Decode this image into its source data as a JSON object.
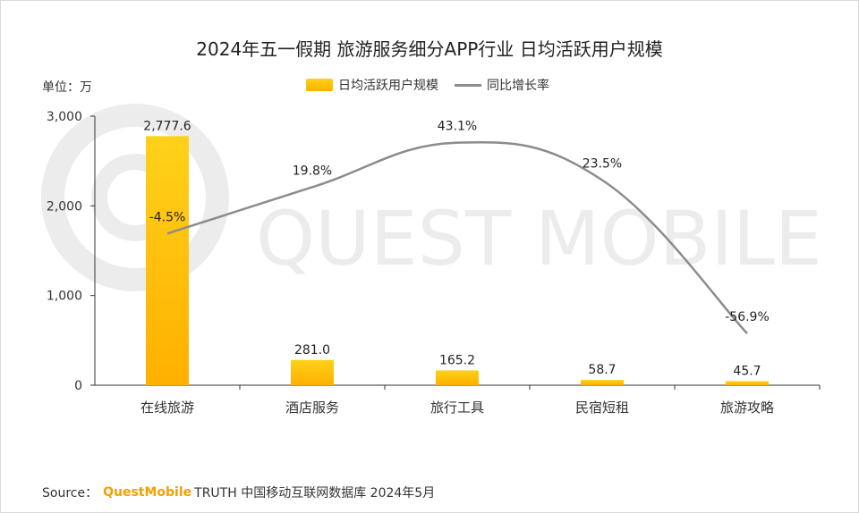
{
  "title": "2024年五一假期 旅游服务细分APP行业 日均活跃用户规模",
  "unit_label": "单位：万",
  "legend": {
    "bar_label": "日均活跃用户规模",
    "line_label": "同比增长率"
  },
  "watermark": "QUEST MOBILE",
  "footer": {
    "source_label": "Source：",
    "brand": "QuestMobile",
    "rest": "TRUTH 中国移动互联网数据库 2024年5月"
  },
  "colors": {
    "bar_top": "#ffd11a",
    "bar_bottom": "#ffb000",
    "line": "#8c8c8c",
    "footer_brand": "#f5a000"
  },
  "chart_data": {
    "type": "bar",
    "categories": [
      "在线旅游",
      "酒店服务",
      "旅行工具",
      "民宿短租",
      "旅游攻略"
    ],
    "series": [
      {
        "name": "日均活跃用户规模",
        "type": "bar",
        "values": [
          2777.6,
          281.0,
          165.2,
          58.7,
          45.7
        ],
        "labels": [
          "2,777.6",
          "281.0",
          "165.2",
          "58.7",
          "45.7"
        ]
      },
      {
        "name": "同比增长率",
        "type": "line",
        "values": [
          -4.5,
          19.8,
          43.1,
          23.5,
          -56.9
        ],
        "labels": [
          "-4.5%",
          "19.8%",
          "43.1%",
          "23.5%",
          "-56.9%"
        ]
      }
    ],
    "ylim": [
      0,
      3000
    ],
    "yticks": [
      0,
      1000,
      2000,
      3000
    ],
    "ytick_labels": [
      "0",
      "1,000",
      "2,000",
      "3,000"
    ],
    "legend_position": "top-center"
  }
}
